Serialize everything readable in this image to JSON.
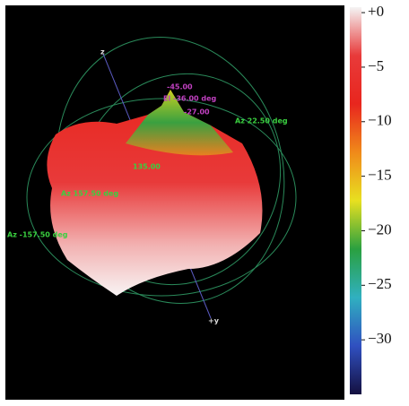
{
  "chart_data": {
    "type": "surface3d",
    "colorbar": {
      "lim": [
        -35,
        0.5
      ],
      "ticks": [
        {
          "value": 0,
          "label": "+0"
        },
        {
          "value": -5,
          "label": "−5"
        },
        {
          "value": -10,
          "label": "−10"
        },
        {
          "value": -15,
          "label": "−15"
        },
        {
          "value": -20,
          "label": "−20"
        },
        {
          "value": -25,
          "label": "−25"
        },
        {
          "value": -30,
          "label": "−30"
        }
      ],
      "colormap": [
        "#f4f4f4",
        "#e83a3a",
        "#e8261e",
        "#f08a1a",
        "#e8e020",
        "#2aa040",
        "#30b0c0",
        "#3050c0",
        "#141040"
      ]
    },
    "annotations": [
      "Az 157.50 deg",
      "Az -157.50 deg",
      "El -36.00 deg",
      "Az 22.50 deg",
      "135.00",
      "-45.00",
      "-27.00",
      "+y",
      "z"
    ]
  }
}
